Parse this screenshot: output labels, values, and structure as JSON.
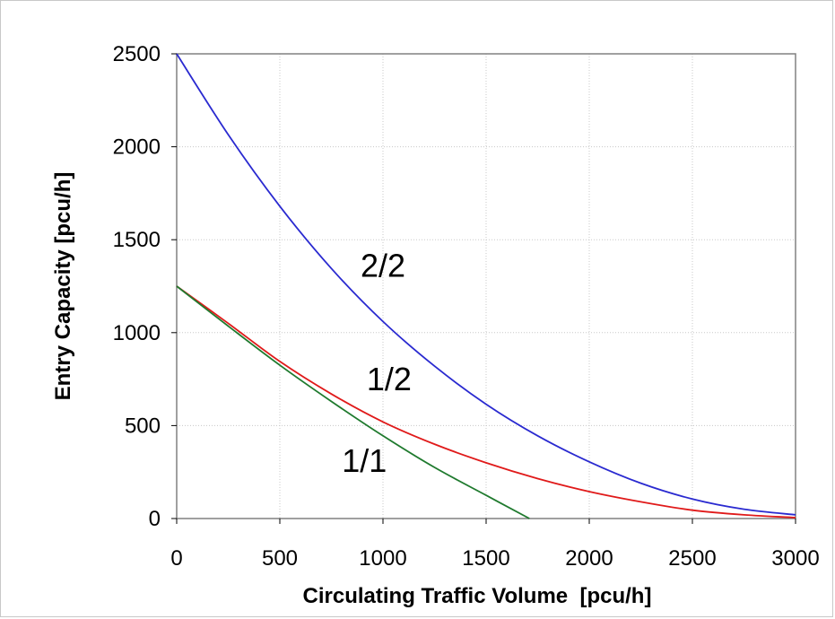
{
  "chart_data": {
    "type": "line",
    "title": "",
    "xlabel": "Circulating Traffic Volume  [pcu/h]",
    "ylabel": "Entry Capacity [pcu/h]",
    "xlim": [
      0,
      3000
    ],
    "ylim": [
      0,
      2500
    ],
    "xticks": [
      "0",
      "500",
      "1000",
      "1500",
      "2000",
      "2500",
      "3000"
    ],
    "yticks": [
      "0",
      "500",
      "1000",
      "1500",
      "2000",
      "2500"
    ],
    "grid": true,
    "series": [
      {
        "name": "2/2",
        "color": "#2a2ad0",
        "x": [
          0,
          250,
          500,
          750,
          1000,
          1250,
          1500,
          1750,
          2000,
          2250,
          2500,
          2750,
          3000
        ],
        "y": [
          2500,
          2065,
          1680,
          1345,
          1060,
          820,
          615,
          445,
          305,
          190,
          105,
          50,
          20
        ]
      },
      {
        "name": "1/2",
        "color": "#e01a1a",
        "x": [
          0,
          250,
          500,
          750,
          1000,
          1250,
          1500,
          1750,
          2000,
          2250,
          2500,
          2750,
          3000
        ],
        "y": [
          1250,
          1050,
          845,
          670,
          520,
          400,
          300,
          215,
          145,
          90,
          45,
          20,
          5
        ]
      },
      {
        "name": "1/1",
        "color": "#1f7a2e",
        "x": [
          0,
          250,
          500,
          750,
          1000,
          1250,
          1500,
          1710
        ],
        "y": [
          1250,
          1035,
          825,
          630,
          445,
          275,
          125,
          0
        ]
      }
    ],
    "annotations": [
      {
        "text": "2/2",
        "x": 1000,
        "y": 1300
      },
      {
        "text": "1/2",
        "x": 1030,
        "y": 690
      },
      {
        "text": "1/1",
        "x": 910,
        "y": 250
      }
    ]
  }
}
